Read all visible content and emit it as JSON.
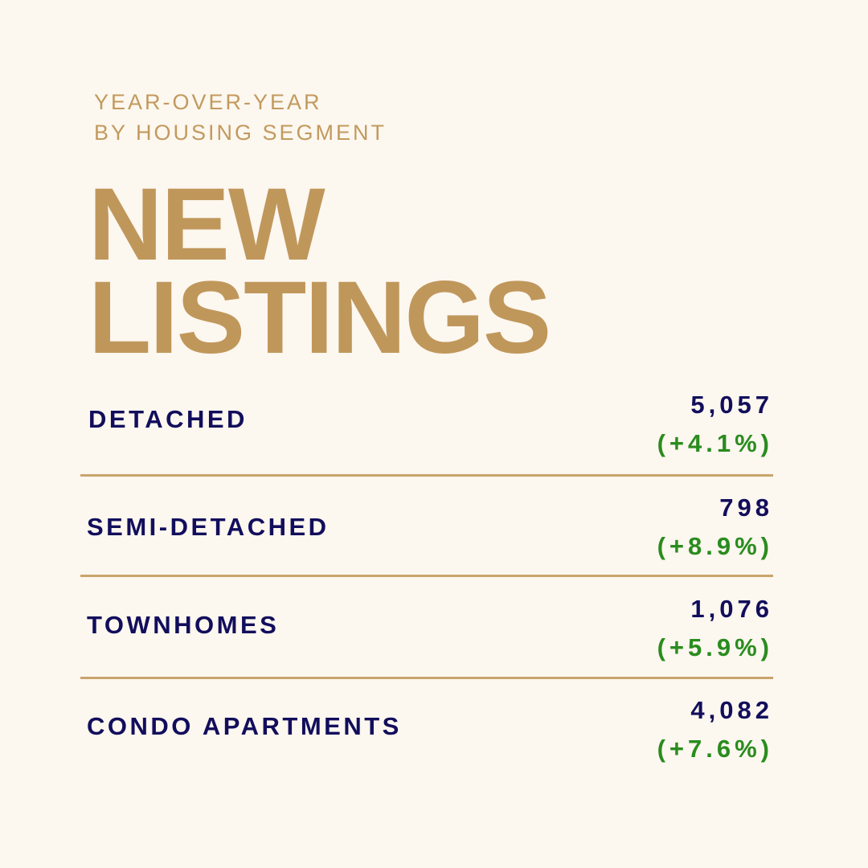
{
  "eyebrow": {
    "line1": "YEAR-OVER-YEAR",
    "line2": "BY HOUSING SEGMENT"
  },
  "headline": {
    "line1": "NEW",
    "line2": "LISTINGS"
  },
  "segments": [
    {
      "label": "DETACHED",
      "value": "5,057",
      "change": "(+4.1%)"
    },
    {
      "label": "SEMI-DETACHED",
      "value": "798",
      "change": "(+8.9%)"
    },
    {
      "label": "TOWNHOMES",
      "value": "1,076",
      "change": "(+5.9%)"
    },
    {
      "label": "CONDO APARTMENTS",
      "value": "4,082",
      "change": "(+7.6%)"
    }
  ],
  "colors": {
    "background": "#fcf7ef",
    "gold": "#c0975b",
    "navy": "#120e5c",
    "green": "#2a8c1e"
  }
}
